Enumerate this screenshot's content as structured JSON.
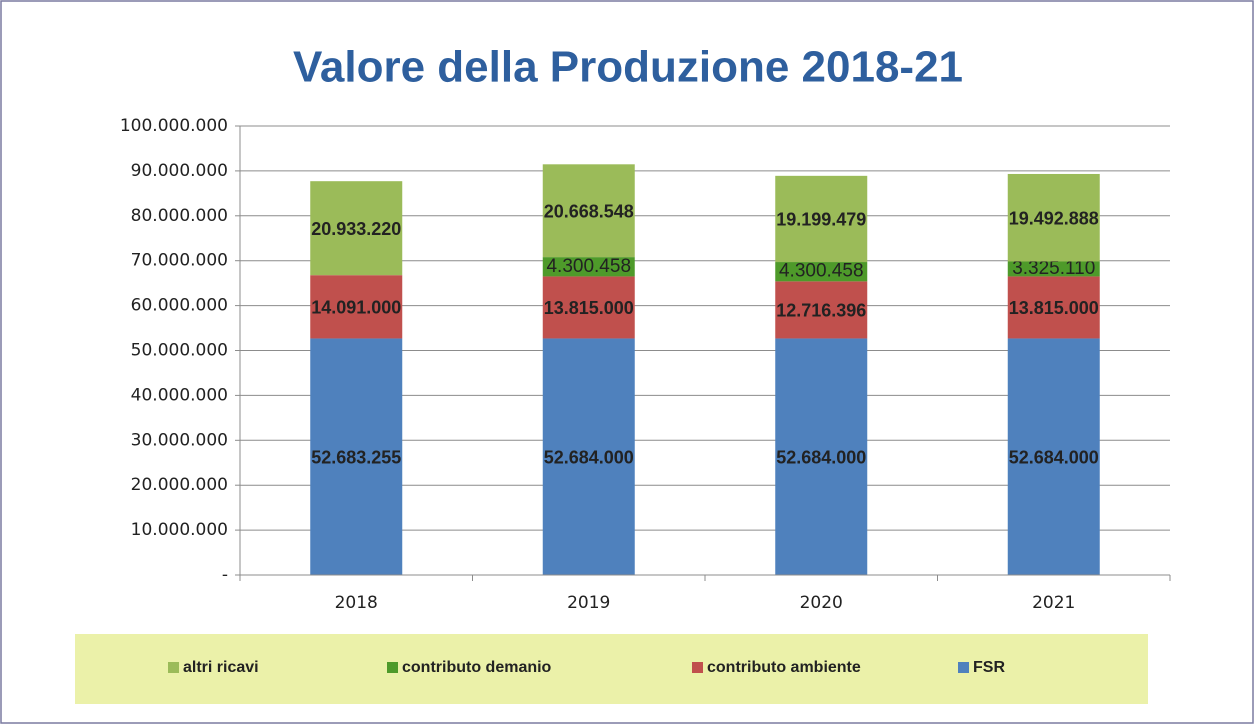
{
  "chart_data": {
    "type": "stacked-bar",
    "title": "Valore della Produzione 2018-21",
    "categories": [
      "2018",
      "2019",
      "2020",
      "2021"
    ],
    "series": [
      {
        "name": "FSR",
        "color": "#4f81bd",
        "values": [
          52683255,
          52684000,
          52684000,
          52684000
        ],
        "value_labels": [
          "52.683.255",
          "52.684.000",
          "52.684.000",
          "52.684.000"
        ]
      },
      {
        "name": "contributo ambiente",
        "color": "#c0504d",
        "values": [
          14091000,
          13815000,
          12716396,
          13815000
        ],
        "value_labels": [
          "14.091.000",
          "13.815.000",
          "12.716.396",
          "13.815.000"
        ]
      },
      {
        "name": "contributo demanio",
        "color": "#4e9a2a",
        "values": [
          null,
          4300458,
          4300458,
          3325110
        ],
        "value_labels": [
          null,
          "4.300.458",
          "4.300.458",
          "3.325.110"
        ]
      },
      {
        "name": "altri ricavi",
        "color": "#9bbb59",
        "values": [
          20933220,
          20668548,
          19199479,
          19492888
        ],
        "value_labels": [
          "20.933.220",
          "20.668.548",
          "19.199.479",
          "19.492.888"
        ]
      }
    ],
    "ylim": [
      0,
      100000000
    ],
    "yticks": [
      {
        "value": 0,
        "label": "-"
      },
      {
        "value": 10000000,
        "label": "10.000.000"
      },
      {
        "value": 20000000,
        "label": "20.000.000"
      },
      {
        "value": 30000000,
        "label": "30.000.000"
      },
      {
        "value": 40000000,
        "label": "40.000.000"
      },
      {
        "value": 50000000,
        "label": "50.000.000"
      },
      {
        "value": 60000000,
        "label": "60.000.000"
      },
      {
        "value": 70000000,
        "label": "70.000.000"
      },
      {
        "value": 80000000,
        "label": "80.000.000"
      },
      {
        "value": 90000000,
        "label": "90.000.000"
      },
      {
        "value": 100000000,
        "label": "100.000.000"
      }
    ],
    "grid": true,
    "legend": "bottom"
  }
}
